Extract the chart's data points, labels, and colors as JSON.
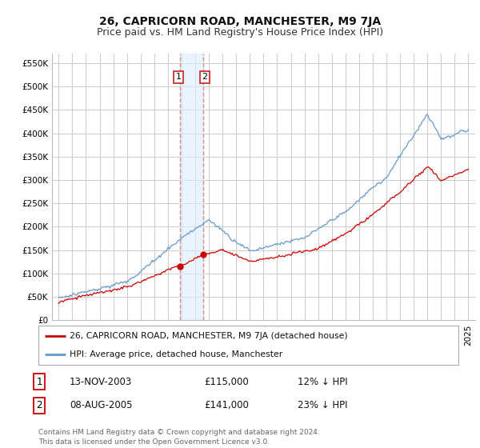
{
  "title": "26, CAPRICORN ROAD, MANCHESTER, M9 7JA",
  "subtitle": "Price paid vs. HM Land Registry's House Price Index (HPI)",
  "background_color": "#ffffff",
  "plot_bg_color": "#ffffff",
  "grid_color": "#cccccc",
  "ylim": [
    0,
    570000
  ],
  "yticks": [
    0,
    50000,
    100000,
    150000,
    200000,
    250000,
    300000,
    350000,
    400000,
    450000,
    500000,
    550000
  ],
  "ytick_labels": [
    "£0",
    "£50K",
    "£100K",
    "£150K",
    "£200K",
    "£250K",
    "£300K",
    "£350K",
    "£400K",
    "£450K",
    "£500K",
    "£550K"
  ],
  "purchase1_date": 2003.87,
  "purchase1_price": 115000,
  "purchase2_date": 2005.6,
  "purchase2_price": 141000,
  "house_color": "#cc0000",
  "hpi_color": "#6699cc",
  "vline_color": "#dd8888",
  "shade_color": "#ddeeff",
  "legend_house": "26, CAPRICORN ROAD, MANCHESTER, M9 7JA (detached house)",
  "legend_hpi": "HPI: Average price, detached house, Manchester",
  "table_rows": [
    {
      "num": "1",
      "date": "13-NOV-2003",
      "price": "£115,000",
      "pct": "12% ↓ HPI"
    },
    {
      "num": "2",
      "date": "08-AUG-2005",
      "price": "£141,000",
      "pct": "23% ↓ HPI"
    }
  ],
  "footer": "Contains HM Land Registry data © Crown copyright and database right 2024.\nThis data is licensed under the Open Government Licence v3.0.",
  "title_fontsize": 10,
  "subtitle_fontsize": 9,
  "tick_fontsize": 7.5,
  "label_fontsize": 8.5,
  "x_start_year": 1995,
  "x_end_year": 2025
}
